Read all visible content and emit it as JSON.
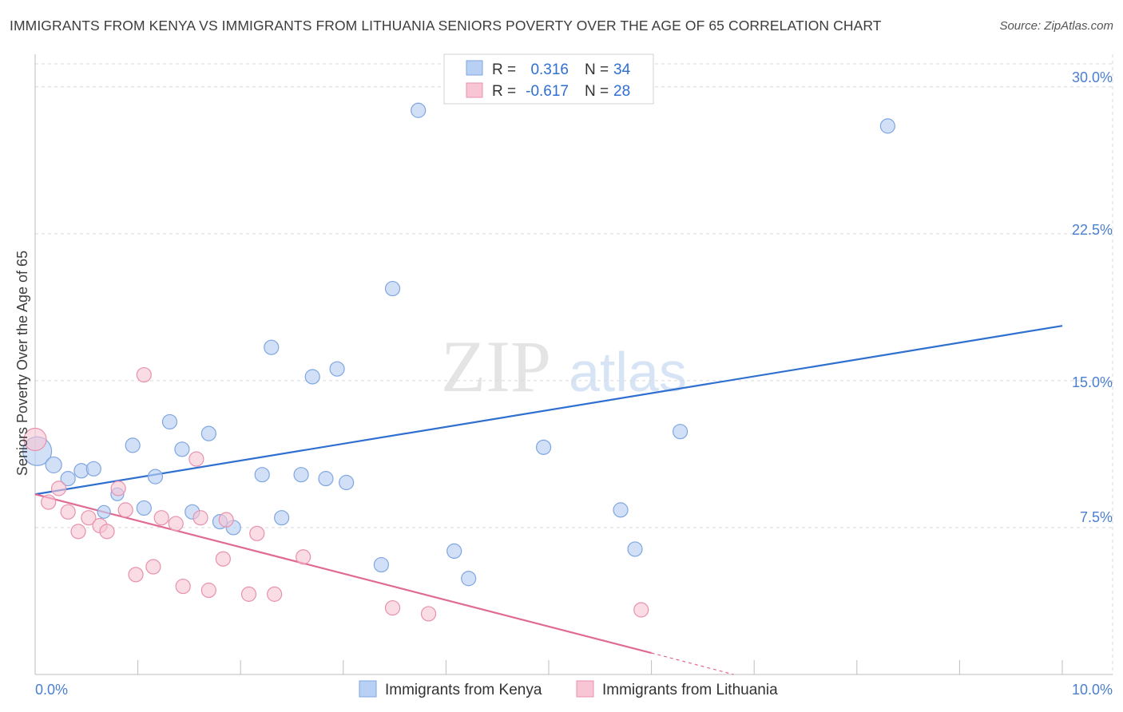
{
  "title": "IMMIGRANTS FROM KENYA VS IMMIGRANTS FROM LITHUANIA SENIORS POVERTY OVER THE AGE OF 65 CORRELATION CHART",
  "source": "Source: ZipAtlas.com",
  "watermark": {
    "zip": "ZIP",
    "atlas": "atlas"
  },
  "colors": {
    "kenya_fill": "#b8d0f3",
    "kenya_stroke": "#7fa6e0",
    "kenya_line": "#2f6fd0",
    "lith_fill": "#f7c5d4",
    "lith_stroke": "#e891ad",
    "lith_line": "#e06a94",
    "grid": "#d9d9d9",
    "tick_label": "#4a7fd0"
  },
  "legend": {
    "r_label": "R =",
    "n_label": "N =",
    "kenya": {
      "r": "0.316",
      "n": "34"
    },
    "lithuania": {
      "r": "-0.617",
      "n": "28"
    }
  },
  "chart_data": {
    "type": "scatter",
    "title": "IMMIGRANTS FROM KENYA VS IMMIGRANTS FROM LITHUANIA SENIORS POVERTY OVER THE AGE OF 65 CORRELATION CHART",
    "xlabel": "",
    "ylabel": "Seniors Poverty Over the Age of 65",
    "xlim": [
      0,
      10
    ],
    "ylim": [
      0,
      31.5
    ],
    "x_tick_labels": [
      "0.0%",
      "10.0%"
    ],
    "y_ticks": [
      7.5,
      15.0,
      22.5,
      30.0
    ],
    "y_tick_labels": [
      "7.5%",
      "15.0%",
      "22.5%",
      "30.0%"
    ],
    "grid": true,
    "series": [
      {
        "name": "Immigrants from Kenya",
        "points": [
          [
            0.02,
            11.4,
            18
          ],
          [
            0.18,
            10.7,
            10
          ],
          [
            0.32,
            10.0,
            9
          ],
          [
            0.45,
            10.4,
            9
          ],
          [
            0.57,
            10.5,
            9
          ],
          [
            0.67,
            8.3,
            8
          ],
          [
            0.8,
            9.2,
            8
          ],
          [
            0.95,
            11.7,
            9
          ],
          [
            1.06,
            8.5,
            9
          ],
          [
            1.17,
            10.1,
            9
          ],
          [
            1.31,
            12.9,
            9
          ],
          [
            1.43,
            11.5,
            9
          ],
          [
            1.53,
            8.3,
            9
          ],
          [
            1.69,
            12.3,
            9
          ],
          [
            1.8,
            7.8,
            9
          ],
          [
            1.93,
            7.5,
            9
          ],
          [
            2.21,
            10.2,
            9
          ],
          [
            2.3,
            16.7,
            9
          ],
          [
            2.4,
            8.0,
            9
          ],
          [
            2.59,
            10.2,
            9
          ],
          [
            2.7,
            15.2,
            9
          ],
          [
            2.83,
            10.0,
            9
          ],
          [
            2.94,
            15.6,
            9
          ],
          [
            3.03,
            9.8,
            9
          ],
          [
            3.37,
            5.6,
            9
          ],
          [
            3.48,
            19.7,
            9
          ],
          [
            3.73,
            28.8,
            9
          ],
          [
            4.08,
            6.3,
            9
          ],
          [
            4.22,
            4.9,
            9
          ],
          [
            4.95,
            11.6,
            9
          ],
          [
            5.7,
            8.4,
            9
          ],
          [
            5.84,
            6.4,
            9
          ],
          [
            6.28,
            12.4,
            9
          ],
          [
            8.3,
            28.0,
            9
          ]
        ],
        "trend": {
          "x": [
            0.0,
            10.0
          ],
          "y": [
            9.2,
            17.8
          ]
        }
      },
      {
        "name": "Immigrants from Lithuania",
        "points": [
          [
            0.0,
            12.0,
            14
          ],
          [
            0.13,
            8.8,
            9
          ],
          [
            0.23,
            9.5,
            9
          ],
          [
            0.32,
            8.3,
            9
          ],
          [
            0.42,
            7.3,
            9
          ],
          [
            0.52,
            8.0,
            9
          ],
          [
            0.63,
            7.6,
            9
          ],
          [
            0.7,
            7.3,
            9
          ],
          [
            0.81,
            9.5,
            9
          ],
          [
            0.88,
            8.4,
            9
          ],
          [
            0.98,
            5.1,
            9
          ],
          [
            1.06,
            15.3,
            9
          ],
          [
            1.15,
            5.5,
            9
          ],
          [
            1.23,
            8.0,
            9
          ],
          [
            1.37,
            7.7,
            9
          ],
          [
            1.44,
            4.5,
            9
          ],
          [
            1.57,
            11.0,
            9
          ],
          [
            1.61,
            8.0,
            9
          ],
          [
            1.69,
            4.3,
            9
          ],
          [
            1.83,
            5.9,
            9
          ],
          [
            1.86,
            7.9,
            9
          ],
          [
            2.08,
            4.1,
            9
          ],
          [
            2.16,
            7.2,
            9
          ],
          [
            2.33,
            4.1,
            9
          ],
          [
            2.61,
            6.0,
            9
          ],
          [
            3.48,
            3.4,
            9
          ],
          [
            3.83,
            3.1,
            9
          ],
          [
            5.9,
            3.3,
            9
          ]
        ],
        "trend": {
          "x": [
            0.0,
            6.0
          ],
          "y": [
            9.2,
            1.1
          ]
        },
        "trend_dashed": {
          "x": [
            6.0,
            6.8
          ],
          "y": [
            1.1,
            0.0
          ]
        }
      }
    ]
  },
  "axis": {
    "x_min_label": "0.0%",
    "x_max_label": "10.0%",
    "y_label": "Seniors Poverty Over the Age of 65",
    "y_tick_labels": [
      "7.5%",
      "15.0%",
      "22.5%",
      "30.0%"
    ]
  },
  "bottom_legend": {
    "kenya": "Immigrants from Kenya",
    "lithuania": "Immigrants from Lithuania"
  }
}
